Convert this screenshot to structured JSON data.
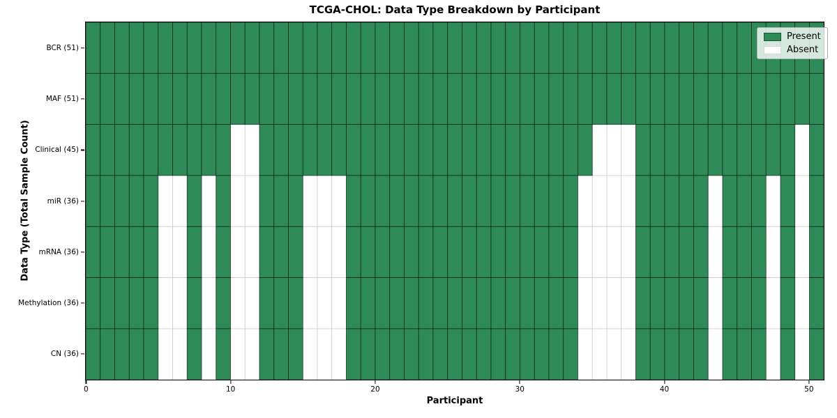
{
  "title": "TCGA-CHOL: Data Type Breakdown by Participant",
  "colors": {
    "present": "#2e8b57",
    "absent": "#ffffff",
    "present_edge_opacity": 0.65,
    "absent_edge": "#cccccc",
    "spine": "#000000"
  },
  "chart_data": {
    "type": "heatmap",
    "title": "TCGA-CHOL: Data Type Breakdown by Participant",
    "xlabel": "Participant",
    "ylabel": "Data Type (Total Sample Count)",
    "x_ticks": [
      0,
      10,
      20,
      30,
      40,
      50
    ],
    "x_range": [
      0,
      51
    ],
    "n_participants": 51,
    "value_encoding": {
      "present": 1,
      "absent": 0
    },
    "rows": [
      {
        "label": "BCR (51)",
        "data_type": "BCR",
        "present_count": 51,
        "absent_participants": []
      },
      {
        "label": "MAF (51)",
        "data_type": "MAF",
        "present_count": 51,
        "absent_participants": []
      },
      {
        "label": "Clinical (45)",
        "data_type": "Clinical",
        "present_count": 45,
        "absent_participants": [
          10,
          11,
          35,
          36,
          37,
          49
        ]
      },
      {
        "label": "miR (36)",
        "data_type": "miR",
        "present_count": 36,
        "absent_participants": [
          5,
          6,
          8,
          10,
          11,
          15,
          16,
          17,
          34,
          35,
          36,
          37,
          43,
          47,
          49
        ]
      },
      {
        "label": "mRNA (36)",
        "data_type": "mRNA",
        "present_count": 36,
        "absent_participants": [
          5,
          6,
          8,
          10,
          11,
          15,
          16,
          17,
          34,
          35,
          36,
          37,
          43,
          47,
          49
        ]
      },
      {
        "label": "Methylation (36)",
        "data_type": "Methylation",
        "present_count": 36,
        "absent_participants": [
          5,
          6,
          8,
          10,
          11,
          15,
          16,
          17,
          34,
          35,
          36,
          37,
          43,
          47,
          49
        ]
      },
      {
        "label": "CN (36)",
        "data_type": "CN",
        "present_count": 36,
        "absent_participants": [
          5,
          6,
          8,
          10,
          11,
          15,
          16,
          17,
          34,
          35,
          36,
          37,
          43,
          47,
          49
        ]
      }
    ],
    "legend": [
      {
        "label": "Present",
        "color": "#2e8b57"
      },
      {
        "label": "Absent",
        "color": "#ffffff"
      }
    ],
    "legend_position": "upper right",
    "grid": true
  }
}
